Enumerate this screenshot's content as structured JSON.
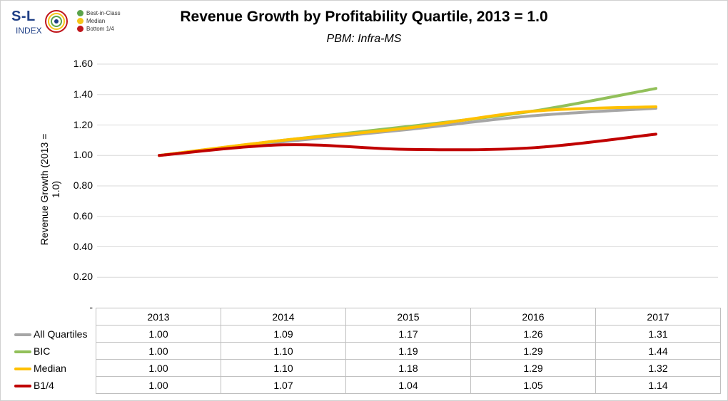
{
  "logo": {
    "line1": "S-L",
    "line2": "INDEX"
  },
  "logo_legend": [
    {
      "label": "Best-in-Class",
      "color": "#5aa34a"
    },
    {
      "label": "Median",
      "color": "#f5c518"
    },
    {
      "label": "Bottom 1/4",
      "color": "#c0161c"
    }
  ],
  "chart_data": {
    "type": "line",
    "title": "Revenue Growth by Profitability Quartile, 2013 = 1.0",
    "subtitle": "PBM: Infra-MS",
    "ylabel": "Revenue Growth (2013 = 1.0)",
    "xlabel": "",
    "ylim": [
      0,
      1.6
    ],
    "yticks": [
      "-",
      "0.20",
      "0.40",
      "0.60",
      "0.80",
      "1.00",
      "1.20",
      "1.40",
      "1.60"
    ],
    "grid": true,
    "categories": [
      "2013",
      "2014",
      "2015",
      "2016",
      "2017"
    ],
    "series": [
      {
        "name": "All Quartiles",
        "color": "#a6a6a6",
        "values": [
          1.0,
          1.09,
          1.17,
          1.26,
          1.31
        ],
        "labels": [
          "1.00",
          "1.09",
          "1.17",
          "1.26",
          "1.31"
        ]
      },
      {
        "name": "BIC",
        "color": "#92c05a",
        "values": [
          1.0,
          1.1,
          1.19,
          1.29,
          1.44
        ],
        "labels": [
          "1.00",
          "1.10",
          "1.19",
          "1.29",
          "1.44"
        ]
      },
      {
        "name": "Median",
        "color": "#ffc000",
        "values": [
          1.0,
          1.1,
          1.18,
          1.29,
          1.32
        ],
        "labels": [
          "1.00",
          "1.10",
          "1.18",
          "1.29",
          "1.32"
        ]
      },
      {
        "name": "B1/4",
        "color": "#c00000",
        "values": [
          1.0,
          1.07,
          1.04,
          1.05,
          1.14
        ],
        "labels": [
          "1.00",
          "1.07",
          "1.04",
          "1.05",
          "1.14"
        ]
      }
    ]
  }
}
